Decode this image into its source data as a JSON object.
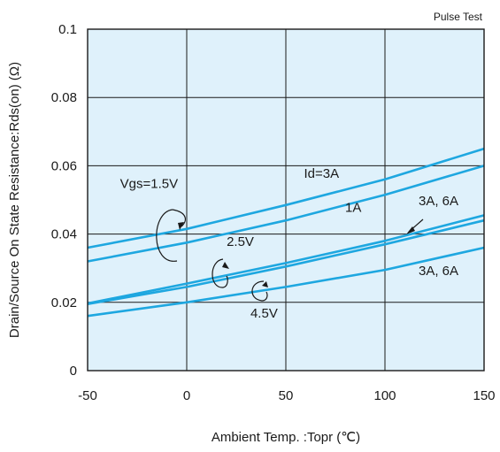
{
  "chart_data": {
    "type": "line",
    "title": "",
    "corner_note": "Pulse Test",
    "xlabel": "Ambient Temp. :Topr (℃)",
    "ylabel": "Drain/Source On State Resistance:Rds(on) (Ω)",
    "xlim": [
      -50,
      150
    ],
    "ylim": [
      0,
      0.1
    ],
    "x_ticks": [
      "-50",
      "0",
      "50",
      "100",
      "150"
    ],
    "y_ticks": [
      "0",
      "0.02",
      "0.04",
      "0.06",
      "0.08",
      "0.1"
    ],
    "grid": true,
    "background_color": "#dff1fb",
    "line_color": "#1ea7e0",
    "series": [
      {
        "x": [
          -50,
          0,
          50,
          100,
          150
        ],
        "y": [
          0.036,
          0.0415,
          0.0485,
          0.056,
          0.065
        ]
      },
      {
        "x": [
          -50,
          0,
          50,
          100,
          150
        ],
        "y": [
          0.032,
          0.0375,
          0.044,
          0.0515,
          0.06
        ]
      },
      {
        "x": [
          -50,
          0,
          50,
          100,
          150
        ],
        "y": [
          0.0197,
          0.0255,
          0.0315,
          0.038,
          0.0455
        ]
      },
      {
        "x": [
          -50,
          0,
          50,
          100,
          150
        ],
        "y": [
          0.0195,
          0.0245,
          0.0305,
          0.037,
          0.044
        ]
      },
      {
        "x": [
          -50,
          0,
          50,
          100,
          150
        ],
        "y": [
          0.016,
          0.02,
          0.0245,
          0.0295,
          0.036
        ]
      }
    ],
    "annotations": [
      {
        "text": "Vgs=1.5V",
        "x": -19,
        "y": 0.0535
      },
      {
        "text": "Id=3A",
        "x": 68,
        "y": 0.0565
      },
      {
        "text": "1A",
        "x": 84,
        "y": 0.0465
      },
      {
        "text": "3A, 6A",
        "x": 127,
        "y": 0.0485
      },
      {
        "text": "2.5V",
        "x": 27,
        "y": 0.0365
      },
      {
        "text": "3A, 6A",
        "x": 127,
        "y": 0.028
      },
      {
        "text": "4.5V",
        "x": 39,
        "y": 0.0155
      }
    ]
  },
  "colors": {
    "axis": "#1a1a1a",
    "grid": "#1a1a1a"
  }
}
